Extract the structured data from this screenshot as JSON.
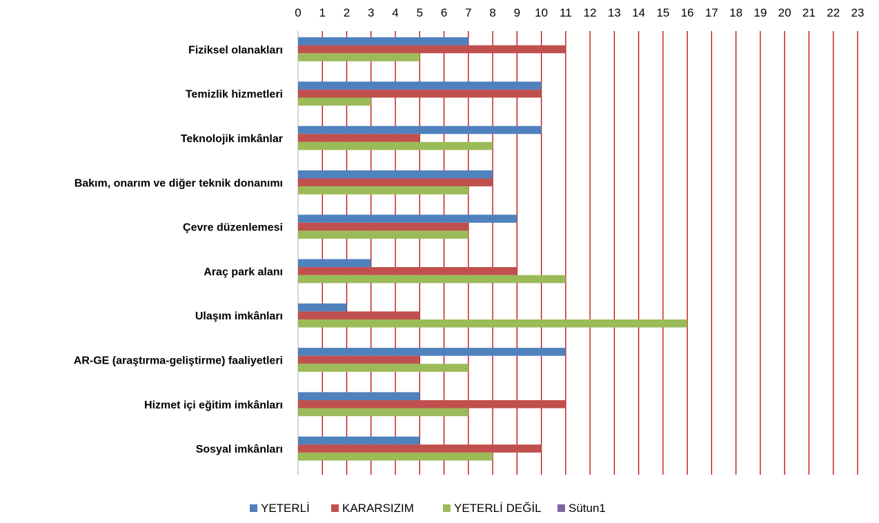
{
  "chart_data": {
    "type": "bar",
    "orientation": "horizontal",
    "categories": [
      "Fiziksel olanakları",
      "Temizlik hizmetleri",
      "Teknolojik imkânlar",
      "Bakım, onarım ve diğer teknik donanımı",
      "Çevre düzenlemesi",
      "Araç park alanı",
      "Ulaşım imkânları",
      "AR-GE (araştırma-geliştirme) faaliyetleri",
      "Hizmet içi eğitim imkânları",
      "Sosyal imkânları"
    ],
    "series": [
      {
        "name": "YETERLİ",
        "color": "#4F81BD",
        "values": [
          7,
          10,
          10,
          8,
          9,
          3,
          2,
          11,
          5,
          5
        ]
      },
      {
        "name": "KARARSIZIM",
        "color": "#C0504D",
        "values": [
          11,
          10,
          5,
          8,
          7,
          9,
          5,
          5,
          11,
          10
        ]
      },
      {
        "name": "YETERLİ DEĞİL",
        "color": "#9BBB59",
        "values": [
          5,
          3,
          8,
          7,
          7,
          11,
          16,
          7,
          7,
          8
        ]
      },
      {
        "name": "Sütun1",
        "color": "#8064A2",
        "values": [
          0,
          0,
          0,
          0,
          0,
          0,
          0,
          0,
          0,
          0
        ]
      }
    ],
    "xlim": [
      0,
      23
    ],
    "x_ticks": [
      "0",
      "1",
      "2",
      "3",
      "4",
      "5",
      "6",
      "7",
      "8",
      "9",
      "10",
      "11",
      "12",
      "13",
      "14",
      "15",
      "16",
      "17",
      "18",
      "19",
      "20",
      "21",
      "22",
      "23"
    ],
    "x_axis_position": "top",
    "grid": true,
    "grid_color": "#C00000",
    "legend": "bottom"
  }
}
